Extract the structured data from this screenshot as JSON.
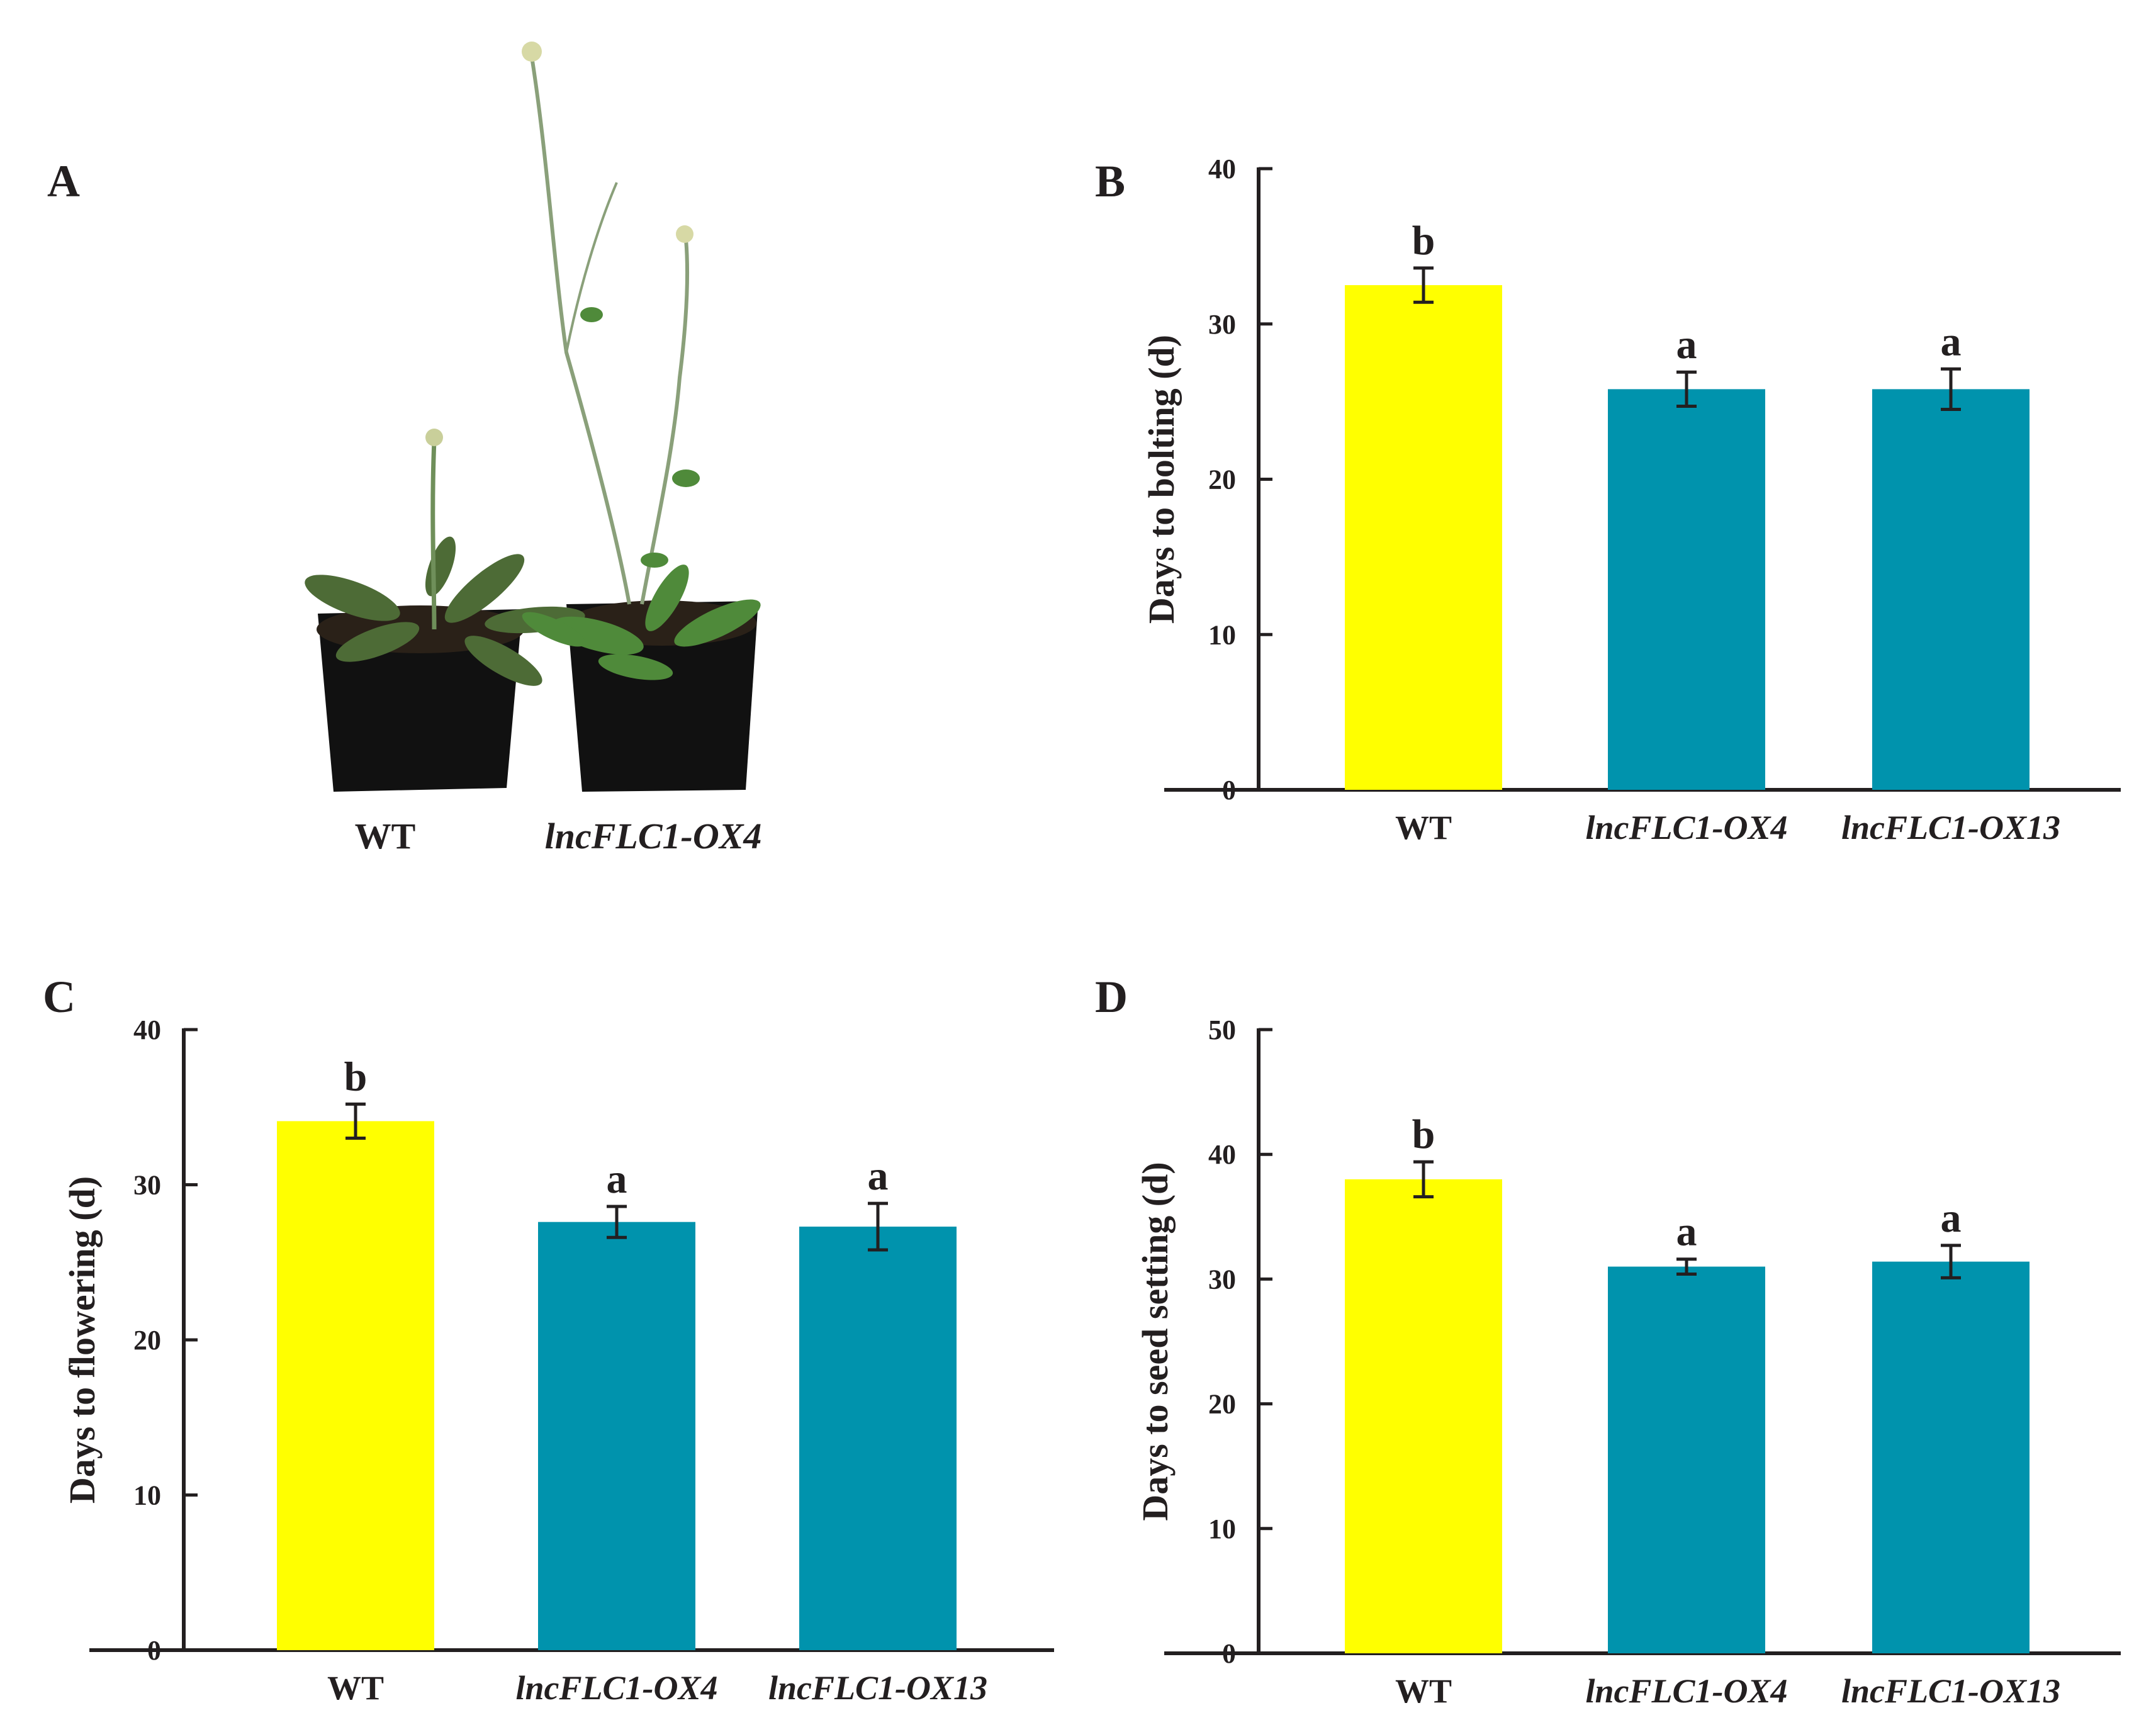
{
  "colors": {
    "wt": "#ffff00",
    "ox": "#0093ad",
    "ink": "#231f20"
  },
  "photo_panel": {
    "letter": "A",
    "labels": [
      "WT",
      "lncFLC1-OX4"
    ]
  },
  "chart_data": [
    {
      "panel": "B",
      "type": "bar",
      "title": "",
      "ylabel": "Days to bolting (d)",
      "xlabel": "",
      "categories": [
        "WT",
        "lncFLC1-OX4",
        "lncFLC1-OX13"
      ],
      "values": [
        32.5,
        25.8,
        25.8
      ],
      "errors": [
        1.1,
        1.1,
        1.3
      ],
      "significance": [
        "b",
        "a",
        "a"
      ],
      "ylim": [
        0,
        40
      ],
      "yticks": [
        "0",
        "10",
        "20",
        "30",
        "40"
      ],
      "grid": false
    },
    {
      "panel": "C",
      "type": "bar",
      "title": "",
      "ylabel": "Days to flowering (d)",
      "xlabel": "",
      "categories": [
        "WT",
        "lncFLC1-OX4",
        "lncFLC1-OX13"
      ],
      "values": [
        34.1,
        27.6,
        27.3
      ],
      "errors": [
        1.1,
        1.0,
        1.5
      ],
      "significance": [
        "b",
        "a",
        "a"
      ],
      "ylim": [
        0,
        40
      ],
      "yticks": [
        "0",
        "10",
        "20",
        "30",
        "40"
      ],
      "grid": false
    },
    {
      "panel": "D",
      "type": "bar",
      "title": "",
      "ylabel": "Days to seed setting (d)",
      "xlabel": "",
      "categories": [
        "WT",
        "lncFLC1-OX4",
        "lncFLC1-OX13"
      ],
      "values": [
        38.0,
        31.0,
        31.4
      ],
      "errors": [
        1.4,
        0.6,
        1.3
      ],
      "significance": [
        "b",
        "a",
        "a"
      ],
      "ylim": [
        0,
        50
      ],
      "yticks": [
        "0",
        "10",
        "20",
        "30",
        "40",
        "50"
      ],
      "grid": false
    }
  ]
}
